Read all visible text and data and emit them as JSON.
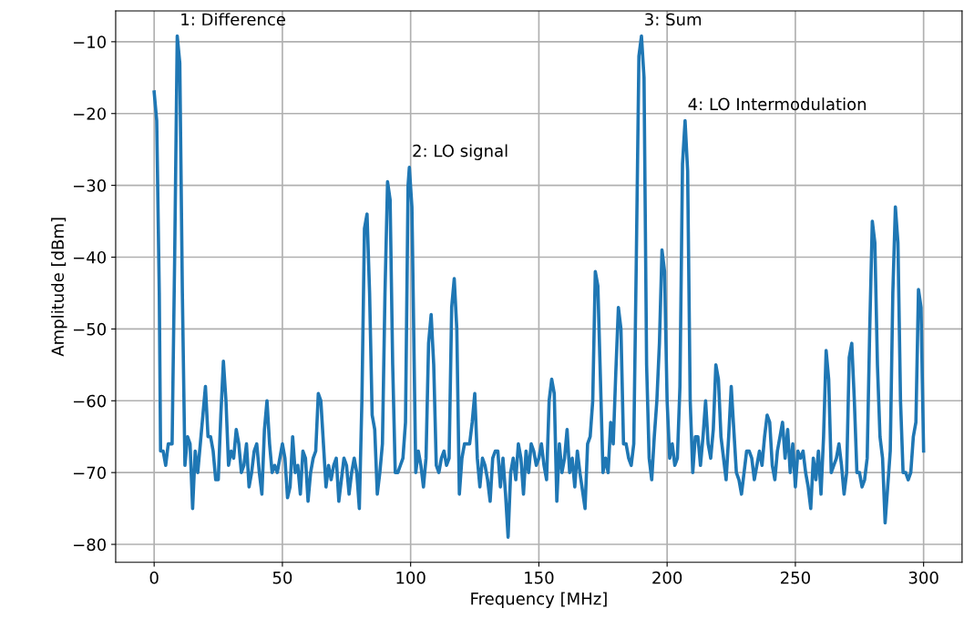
{
  "chart_data": {
    "type": "line",
    "xlabel": "Frequency [MHz]",
    "ylabel": "Amplitude [dBm]",
    "xlim": [
      -15,
      315
    ],
    "xticks": [
      0,
      50,
      100,
      150,
      200,
      250,
      300
    ],
    "ylim": [
      -82.5,
      -5.7
    ],
    "yticks": [
      -80,
      -70,
      -60,
      -50,
      -40,
      -30,
      -20,
      -10
    ],
    "grid": true,
    "marker": "none",
    "line_style": "solid",
    "annotations": [
      {
        "text": "1: Difference",
        "x": 9,
        "y": -9.2
      },
      {
        "text": "2: LO signal",
        "x": 99.5,
        "y": -27.5
      },
      {
        "text": "3: Sum",
        "x": 190,
        "y": -9.2
      },
      {
        "text": "4: LO Intermodulation",
        "x": 207,
        "y": -21
      }
    ],
    "series": [
      {
        "color": "#1f77b4",
        "x": [
          0,
          1,
          2,
          2.5,
          3.5,
          4.5,
          5.5,
          7,
          8,
          9,
          10,
          11,
          12,
          13,
          14,
          15,
          16,
          17,
          19,
          20,
          21,
          22,
          23,
          24,
          25,
          26,
          27,
          28,
          29,
          30,
          31,
          32,
          33,
          34,
          35,
          36,
          37,
          38,
          39,
          40,
          41,
          42,
          43,
          44,
          45,
          46,
          47,
          48,
          50,
          51,
          52,
          53,
          54,
          55,
          56,
          57,
          58,
          59,
          60,
          61,
          62,
          63,
          64,
          65,
          66,
          67,
          68,
          69,
          70,
          71,
          72,
          73,
          74,
          75,
          76,
          77,
          78,
          79,
          80,
          81,
          82,
          83,
          84,
          85,
          86,
          87,
          88,
          89,
          90,
          91,
          92,
          93,
          94,
          95,
          96,
          97,
          98,
          99,
          99.5,
          100.5,
          102,
          103,
          104,
          105,
          106,
          107,
          108,
          109,
          110,
          111,
          112,
          113,
          114,
          115,
          116,
          117,
          118,
          119,
          120,
          121,
          122,
          123,
          124,
          125,
          126,
          127,
          128,
          129,
          130,
          131,
          132,
          133,
          134,
          135,
          136,
          137,
          138,
          139,
          140,
          141,
          142,
          143,
          144,
          145,
          146,
          147,
          148,
          149,
          150,
          151,
          152,
          153,
          154,
          155,
          156,
          157,
          158,
          159,
          160,
          161,
          162,
          163,
          164,
          165,
          166,
          168,
          169,
          170,
          171,
          172,
          173,
          175,
          176,
          177,
          178,
          179,
          180,
          181,
          182,
          183,
          184,
          185,
          186,
          187,
          188,
          189,
          190,
          191,
          192,
          193,
          194,
          195,
          196,
          197,
          198,
          199,
          200,
          201,
          202,
          203,
          204,
          205,
          206,
          207,
          208,
          209,
          210,
          211,
          212,
          213,
          214,
          215,
          216,
          217,
          218,
          219,
          220,
          221,
          222,
          223,
          224,
          225,
          226,
          227,
          228,
          229,
          230,
          231,
          232,
          233,
          234,
          235,
          236,
          237,
          238,
          239,
          240,
          241,
          242,
          243,
          244,
          245,
          246,
          247,
          248,
          249,
          250,
          251,
          252,
          253,
          254,
          255,
          256,
          257,
          258,
          259,
          260,
          261,
          262,
          263,
          264,
          265,
          266,
          267,
          268,
          269,
          270,
          271,
          272,
          273,
          274,
          275,
          276,
          277,
          278,
          279,
          280,
          281,
          282,
          283,
          284,
          285,
          286,
          287,
          288,
          289,
          290,
          291,
          292,
          293,
          294,
          295,
          296,
          297,
          298,
          299,
          300
        ],
        "values": [
          -17,
          -21,
          -45,
          -67,
          -67,
          -69,
          -66,
          -66,
          -40,
          -9.2,
          -13,
          -45,
          -69,
          -65,
          -66,
          -75,
          -67,
          -70,
          -62,
          -58,
          -65,
          -65,
          -67,
          -71,
          -71,
          -62,
          -54.5,
          -60,
          -69,
          -67,
          -68,
          -64,
          -66,
          -70,
          -69,
          -66,
          -72,
          -70,
          -67,
          -66,
          -70,
          -73,
          -64,
          -60,
          -66,
          -70,
          -69,
          -70,
          -66,
          -68,
          -73.5,
          -72,
          -65,
          -70,
          -69,
          -73,
          -67,
          -68,
          -74,
          -70,
          -68,
          -67,
          -59,
          -60,
          -66,
          -72,
          -69,
          -71,
          -69,
          -68,
          -74,
          -71,
          -68,
          -69,
          -73,
          -70,
          -68,
          -70,
          -75,
          -60,
          -36,
          -34,
          -45,
          -62,
          -64,
          -73,
          -70,
          -66,
          -45,
          -29.5,
          -32,
          -55,
          -70,
          -70,
          -69,
          -68,
          -63,
          -30,
          -27.5,
          -33,
          -70,
          -67,
          -69,
          -72,
          -68,
          -52,
          -48,
          -55,
          -69,
          -70,
          -68,
          -67,
          -69,
          -68,
          -47,
          -43,
          -50,
          -73,
          -68,
          -66,
          -66,
          -66,
          -63,
          -59,
          -68,
          -72,
          -68,
          -69,
          -71,
          -74,
          -68,
          -67,
          -67,
          -72,
          -68,
          -73,
          -79,
          -70,
          -68,
          -71,
          -66,
          -68,
          -73,
          -67,
          -70,
          -66,
          -67,
          -69,
          -68,
          -66,
          -69,
          -71,
          -60,
          -57,
          -59,
          -74,
          -66,
          -70,
          -68,
          -64,
          -70,
          -68,
          -72,
          -67,
          -70,
          -75,
          -66,
          -65,
          -60,
          -42,
          -44,
          -70,
          -68,
          -70,
          -63,
          -66,
          -56,
          -47,
          -50,
          -66,
          -66,
          -68,
          -69,
          -66,
          -40,
          -12,
          -9.2,
          -15,
          -55,
          -68,
          -71,
          -65,
          -60,
          -52,
          -39,
          -42,
          -60,
          -68,
          -66,
          -69,
          -68,
          -58,
          -27,
          -21,
          -28,
          -60,
          -70,
          -65,
          -65,
          -69,
          -65,
          -60,
          -66,
          -68,
          -64,
          -55,
          -57,
          -65,
          -68,
          -71,
          -65,
          -58,
          -64,
          -70,
          -71,
          -73,
          -70,
          -67,
          -67,
          -68,
          -71,
          -69,
          -67,
          -69,
          -65,
          -62,
          -63,
          -69,
          -71,
          -67,
          -65,
          -63,
          -68,
          -64,
          -70,
          -66,
          -72,
          -67,
          -68,
          -67,
          -70,
          -72,
          -75,
          -68,
          -71,
          -67,
          -73,
          -65,
          -53,
          -57,
          -70,
          -69,
          -68,
          -66,
          -69,
          -73,
          -70,
          -54,
          -52,
          -60,
          -70,
          -70,
          -72,
          -71,
          -68,
          -50,
          -35,
          -38,
          -55,
          -65,
          -68,
          -77,
          -72,
          -67,
          -45,
          -33,
          -38,
          -60,
          -70,
          -70,
          -71,
          -70,
          -65,
          -63,
          -44.5,
          -47,
          -67
        ]
      }
    ]
  }
}
